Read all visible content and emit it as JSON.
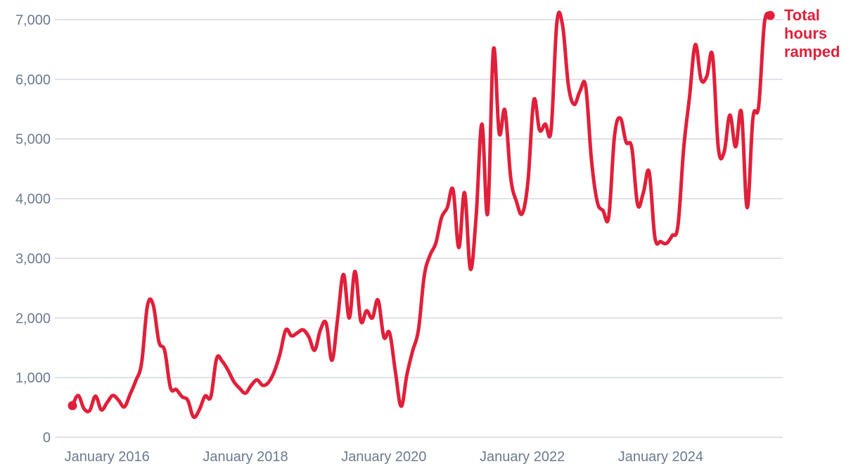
{
  "chart_data": {
    "type": "line",
    "title": "",
    "xlabel": "",
    "ylabel": "",
    "ylim": [
      0,
      7000
    ],
    "grid": true,
    "legend": "end-of-line label",
    "y_ticks": [
      {
        "value": 0,
        "label": "0"
      },
      {
        "value": 1000,
        "label": "1,000"
      },
      {
        "value": 2000,
        "label": "2,000"
      },
      {
        "value": 3000,
        "label": "3,000"
      },
      {
        "value": 4000,
        "label": "4,000"
      },
      {
        "value": 5000,
        "label": "5,000"
      },
      {
        "value": 6000,
        "label": "6,000"
      },
      {
        "value": 7000,
        "label": "7,000"
      }
    ],
    "x_ticks": [
      {
        "value": "2015-07",
        "label": "January 2016"
      },
      {
        "value": "2017-07",
        "label": "January 2018"
      },
      {
        "value": "2019-07",
        "label": "January 2020"
      },
      {
        "value": "2021-07",
        "label": "January 2022"
      },
      {
        "value": "2023-07",
        "label": "January 2024"
      }
    ],
    "series": [
      {
        "name_lines": [
          "Total",
          "hours",
          "ramped"
        ],
        "color": "#e0203a",
        "points": [
          [
            "2015-01",
            530
          ],
          [
            "2015-02",
            700
          ],
          [
            "2015-03",
            480
          ],
          [
            "2015-04",
            450
          ],
          [
            "2015-05",
            690
          ],
          [
            "2015-06",
            460
          ],
          [
            "2015-07",
            580
          ],
          [
            "2015-08",
            700
          ],
          [
            "2015-09",
            620
          ],
          [
            "2015-10",
            510
          ],
          [
            "2015-11",
            720
          ],
          [
            "2015-12",
            950
          ],
          [
            "2016-01",
            1250
          ],
          [
            "2016-02",
            2200
          ],
          [
            "2016-03",
            2220
          ],
          [
            "2016-04",
            1600
          ],
          [
            "2016-05",
            1450
          ],
          [
            "2016-06",
            830
          ],
          [
            "2016-07",
            800
          ],
          [
            "2016-08",
            680
          ],
          [
            "2016-09",
            620
          ],
          [
            "2016-10",
            340
          ],
          [
            "2016-11",
            460
          ],
          [
            "2016-12",
            690
          ],
          [
            "2017-01",
            680
          ],
          [
            "2017-02",
            1320
          ],
          [
            "2017-03",
            1270
          ],
          [
            "2017-04",
            1120
          ],
          [
            "2017-05",
            930
          ],
          [
            "2017-06",
            820
          ],
          [
            "2017-07",
            740
          ],
          [
            "2017-08",
            870
          ],
          [
            "2017-09",
            960
          ],
          [
            "2017-10",
            870
          ],
          [
            "2017-11",
            920
          ],
          [
            "2017-12",
            1100
          ],
          [
            "2018-01",
            1400
          ],
          [
            "2018-02",
            1800
          ],
          [
            "2018-03",
            1700
          ],
          [
            "2018-04",
            1750
          ],
          [
            "2018-05",
            1800
          ],
          [
            "2018-06",
            1680
          ],
          [
            "2018-07",
            1460
          ],
          [
            "2018-08",
            1800
          ],
          [
            "2018-09",
            1910
          ],
          [
            "2018-10",
            1290
          ],
          [
            "2018-11",
            2000
          ],
          [
            "2018-12",
            2730
          ],
          [
            "2019-01",
            2000
          ],
          [
            "2019-02",
            2780
          ],
          [
            "2019-03",
            1950
          ],
          [
            "2019-04",
            2120
          ],
          [
            "2019-05",
            2000
          ],
          [
            "2019-06",
            2300
          ],
          [
            "2019-07",
            1680
          ],
          [
            "2019-08",
            1750
          ],
          [
            "2019-09",
            1100
          ],
          [
            "2019-10",
            520
          ],
          [
            "2019-11",
            1050
          ],
          [
            "2019-12",
            1450
          ],
          [
            "2020-01",
            1800
          ],
          [
            "2020-02",
            2700
          ],
          [
            "2020-03",
            3050
          ],
          [
            "2020-04",
            3250
          ],
          [
            "2020-05",
            3680
          ],
          [
            "2020-06",
            3850
          ],
          [
            "2020-07",
            4150
          ],
          [
            "2020-08",
            3180
          ],
          [
            "2020-09",
            4100
          ],
          [
            "2020-10",
            2820
          ],
          [
            "2020-11",
            3700
          ],
          [
            "2020-12",
            5250
          ],
          [
            "2021-01",
            3750
          ],
          [
            "2021-02",
            6500
          ],
          [
            "2021-03",
            5100
          ],
          [
            "2021-04",
            5480
          ],
          [
            "2021-05",
            4350
          ],
          [
            "2021-06",
            3950
          ],
          [
            "2021-07",
            3750
          ],
          [
            "2021-08",
            4300
          ],
          [
            "2021-09",
            5650
          ],
          [
            "2021-10",
            5150
          ],
          [
            "2021-11",
            5250
          ],
          [
            "2021-12",
            5150
          ],
          [
            "2022-01",
            6950
          ],
          [
            "2022-02",
            6900
          ],
          [
            "2022-03",
            5900
          ],
          [
            "2022-04",
            5580
          ],
          [
            "2022-05",
            5800
          ],
          [
            "2022-06",
            5880
          ],
          [
            "2022-07",
            4650
          ],
          [
            "2022-08",
            3950
          ],
          [
            "2022-09",
            3800
          ],
          [
            "2022-10",
            3700
          ],
          [
            "2022-11",
            5050
          ],
          [
            "2022-12",
            5350
          ],
          [
            "2023-01",
            4950
          ],
          [
            "2023-02",
            4850
          ],
          [
            "2023-03",
            3900
          ],
          [
            "2023-04",
            4100
          ],
          [
            "2023-05",
            4450
          ],
          [
            "2023-06",
            3350
          ],
          [
            "2023-07",
            3280
          ],
          [
            "2023-08",
            3250
          ],
          [
            "2023-09",
            3380
          ],
          [
            "2023-10",
            3550
          ],
          [
            "2023-11",
            4850
          ],
          [
            "2023-12",
            5700
          ],
          [
            "2024-01",
            6580
          ],
          [
            "2024-02",
            6000
          ],
          [
            "2024-03",
            6050
          ],
          [
            "2024-04",
            6400
          ],
          [
            "2024-05",
            4850
          ],
          [
            "2024-06",
            4780
          ],
          [
            "2024-07",
            5400
          ],
          [
            "2024-08",
            4870
          ],
          [
            "2024-09",
            5450
          ],
          [
            "2024-10",
            3850
          ],
          [
            "2024-11",
            5350
          ],
          [
            "2024-12",
            5550
          ],
          [
            "2025-01",
            6950
          ],
          [
            "2025-02",
            7070
          ]
        ]
      }
    ]
  }
}
